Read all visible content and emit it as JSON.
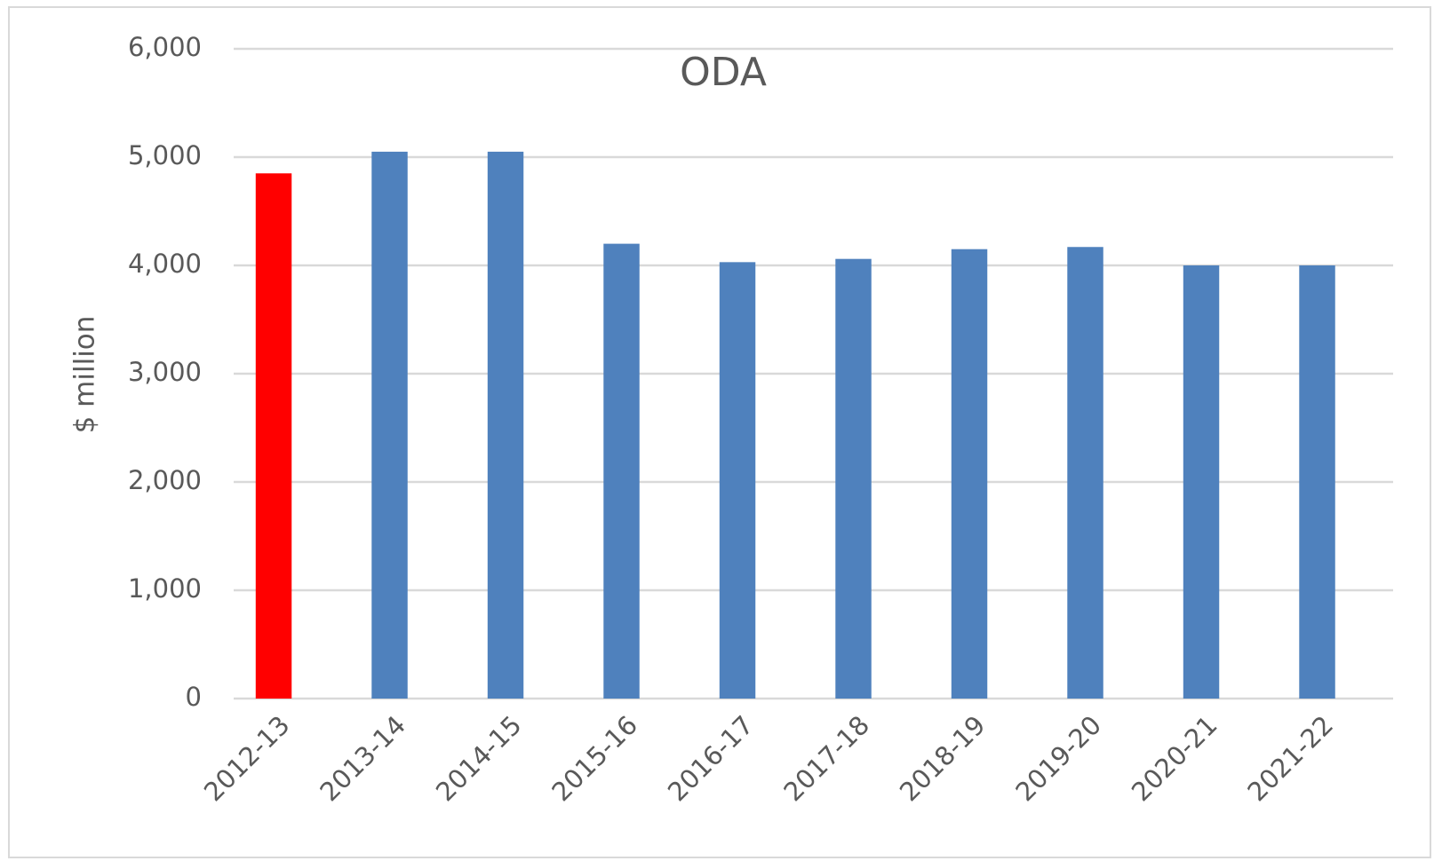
{
  "chart_data": {
    "type": "bar",
    "title": "ODA",
    "y_label": "$ million",
    "categories": [
      "2012-13",
      "2013-14",
      "2014-15",
      "2015-16",
      "2016-17",
      "2017-18",
      "2018-19",
      "2019-20",
      "2020-21",
      "2021-22"
    ],
    "values": [
      4850,
      5050,
      5050,
      4200,
      4030,
      4060,
      4150,
      4170,
      4000,
      4000
    ],
    "colors": [
      "#ff0000",
      "#4f81bd",
      "#4f81bd",
      "#4f81bd",
      "#4f81bd",
      "#4f81bd",
      "#4f81bd",
      "#4f81bd",
      "#4f81bd",
      "#4f81bd"
    ],
    "ylim": [
      0,
      6000
    ],
    "yticks": [
      0,
      {
        "value": 1000,
        "label": "1,000"
      },
      {
        "value": 2000,
        "label": "2,000"
      },
      {
        "value": 3000,
        "label": "3,000"
      },
      {
        "value": 4000,
        "label": "4,000"
      },
      {
        "value": 5000,
        "label": "5,000"
      },
      {
        "value": 6000,
        "label": "6,000"
      }
    ],
    "grid": true
  }
}
